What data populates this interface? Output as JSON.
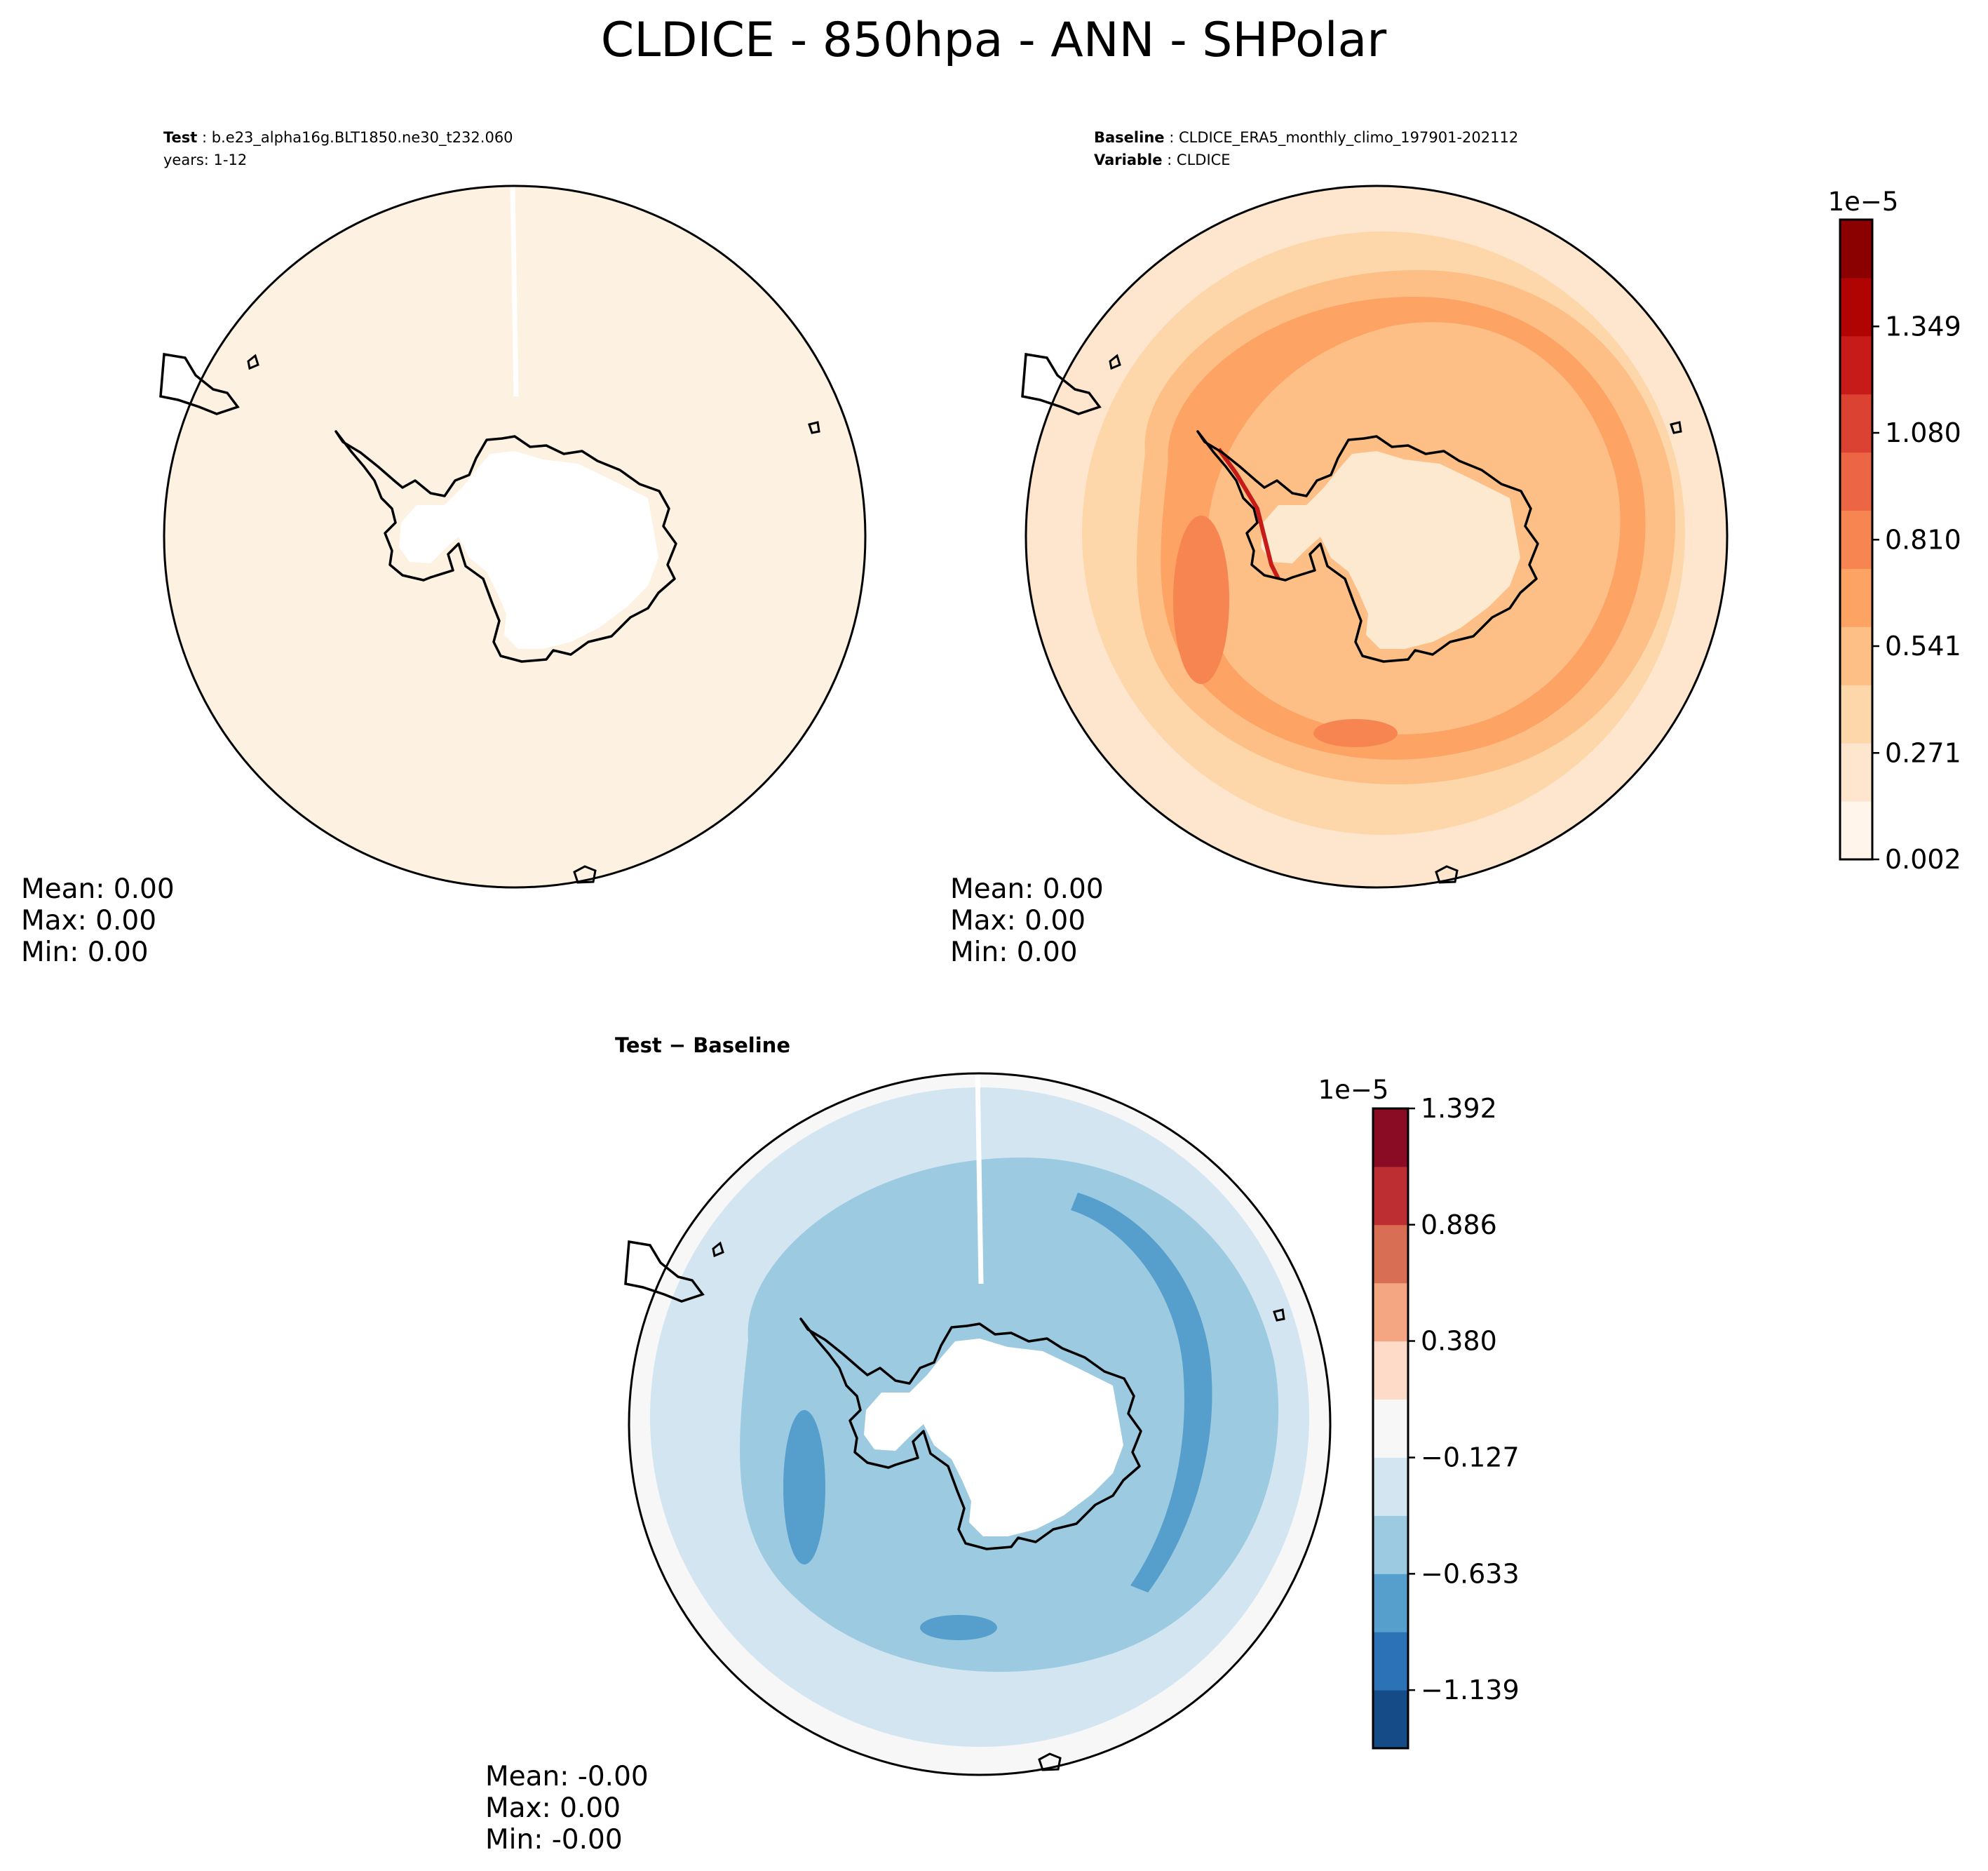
{
  "figure": {
    "title": "CLDICE - 850hpa - ANN - SHPolar"
  },
  "colors": {
    "coast": "#000000",
    "test_field": "#fdf1e1",
    "land_white": "#ffffff"
  },
  "chart_data": [
    {
      "type": "heatmap",
      "panel": "test",
      "projection": "south-polar-stereographic",
      "header": [
        {
          "label": "Test",
          "sep": " : ",
          "value": "b.e23_alpha16g.BLT1850.ne30_t232.060"
        },
        {
          "label": "",
          "sep": "",
          "value": "years: 1-12"
        }
      ],
      "stats": {
        "mean": "Mean:  0.00",
        "max": "Max:  0.00",
        "min": "Min:  0.00"
      },
      "field": "uniform near-zero cloud ice everywhere"
    },
    {
      "type": "heatmap",
      "panel": "baseline",
      "projection": "south-polar-stereographic",
      "header": [
        {
          "label": "Baseline",
          "sep": " : ",
          "value": "CLDICE_ERA5_monthly_climo_197901-202112"
        },
        {
          "label": "Variable",
          "sep": " : ",
          "value": "CLDICE"
        }
      ],
      "stats": {
        "mean": "Mean:  0.00",
        "max": "Max:  0.00",
        "min": "Min:  0.00"
      },
      "colorbar": {
        "scale_label": "1e−5",
        "colormap": "OrRd",
        "ticks": [
          "0.002",
          "0.271",
          "0.541",
          "0.810",
          "1.080",
          "1.349"
        ],
        "range": [
          0.002,
          1.619
        ],
        "levels": 11,
        "colors": [
          "#fff5eb",
          "#fee6ce",
          "#fdd7a9",
          "#fdbf86",
          "#fda363",
          "#f78552",
          "#ec6544",
          "#dc4232",
          "#c71b1a",
          "#b00403",
          "#8b0000"
        ]
      }
    },
    {
      "type": "heatmap",
      "panel": "difference",
      "projection": "south-polar-stereographic",
      "header": [
        {
          "label": "Test − Baseline",
          "sep": "",
          "value": ""
        }
      ],
      "stats": {
        "mean": "Mean: -0.00",
        "max": "Max:  0.00",
        "min": "Min: -0.00"
      },
      "colorbar": {
        "scale_label": "1e−5",
        "colormap": "RdBu_r",
        "ticks": [
          "−1.139",
          "−0.633",
          "−0.127",
          "0.380",
          "0.886",
          "1.392"
        ],
        "range": [
          -1.392,
          1.392
        ],
        "levels": 11,
        "colors": [
          "#154b86",
          "#2c72b6",
          "#569fcc",
          "#9ccae0",
          "#d2e5f0",
          "#f7f7f7",
          "#fddbc8",
          "#f4a683",
          "#d86f55",
          "#bd2e33",
          "#8a0b24"
        ]
      }
    }
  ]
}
